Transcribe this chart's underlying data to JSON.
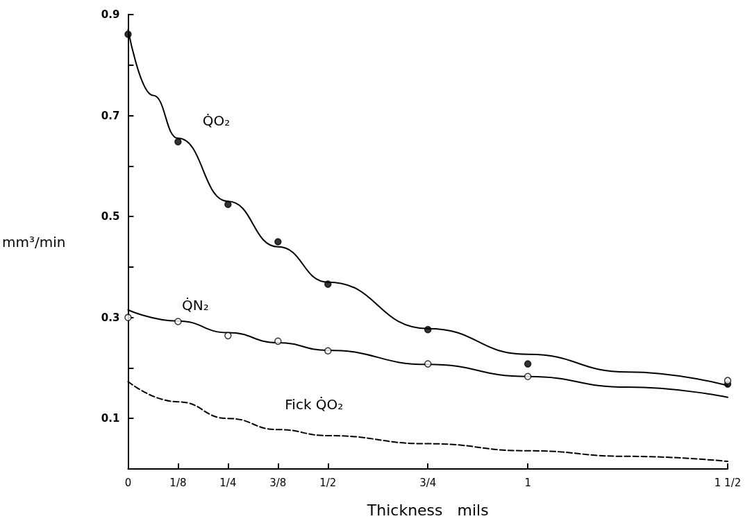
{
  "chart_data": {
    "type": "line",
    "xlabel": "Thickness   mils",
    "ylabel": "mm³/min",
    "xlim": [
      0,
      1.5
    ],
    "xticks": [
      0,
      {
        "value": 0.125,
        "label": "1/8"
      },
      {
        "value": 0.25,
        "label": "1/4"
      },
      {
        "value": 0.375,
        "label": "3/8"
      },
      {
        "value": 0.5,
        "label": "1/2"
      },
      {
        "value": 0.75,
        "label": "3/4"
      },
      1,
      {
        "value": 1.5,
        "label": "1 1/2"
      }
    ],
    "ylim": [
      0,
      0.9
    ],
    "yticks": [
      {
        "value": 0.1,
        "label": "0.1"
      },
      {
        "value": 0.2,
        "label": null
      },
      {
        "value": 0.3,
        "label": "0.3"
      },
      {
        "value": 0.4,
        "label": null
      },
      {
        "value": 0.5,
        "label": "0.5"
      },
      {
        "value": 0.6,
        "label": null
      },
      {
        "value": 0.7,
        "label": "0.7"
      },
      {
        "value": 0.8,
        "label": null
      },
      {
        "value": 0.9,
        "label": "0.9"
      }
    ],
    "grid": false,
    "legend": false,
    "series": [
      {
        "name": "Q̇O₂",
        "color": "#000000",
        "line_style": "solid",
        "marker": "none",
        "x": [
          0,
          0.0625,
          0.125,
          0.25,
          0.375,
          0.5,
          0.75,
          1,
          1.25,
          1.5
        ],
        "values": [
          0.87,
          0.74,
          0.655,
          0.53,
          0.44,
          0.37,
          0.278,
          0.227,
          0.192,
          0.165
        ]
      },
      {
        "name": "Q̇N₂",
        "color": "#000000",
        "line_style": "solid",
        "marker": "none",
        "x": [
          0,
          0.125,
          0.25,
          0.375,
          0.5,
          0.75,
          1,
          1.25,
          1.5
        ],
        "values": [
          0.315,
          0.293,
          0.27,
          0.25,
          0.235,
          0.207,
          0.183,
          0.162,
          0.142
        ]
      },
      {
        "name": "Fick Q̇O₂",
        "color": "#000000",
        "line_style": "dashed",
        "marker": "none",
        "x": [
          0,
          0.125,
          0.25,
          0.375,
          0.5,
          0.75,
          1,
          1.25,
          1.5
        ],
        "values": [
          0.173,
          0.133,
          0.1,
          0.078,
          0.066,
          0.05,
          0.036,
          0.025,
          0.015
        ]
      },
      {
        "type": "scatter",
        "color": "#000000",
        "marker": "circle",
        "x": [
          0,
          0.125,
          0.25,
          0.375,
          0.5,
          0.75,
          1,
          1.5
        ],
        "values": [
          0.861,
          0.648,
          0.524,
          0.45,
          0.366,
          0.276,
          0.208,
          0.168
        ]
      },
      {
        "type": "scatter",
        "color": "#ffffff",
        "marker": "circle",
        "x": [
          0,
          0.125,
          0.25,
          0.375,
          0.5,
          0.75,
          1,
          1.5
        ],
        "values": [
          0.3,
          0.292,
          0.264,
          0.253,
          0.234,
          0.208,
          0.183,
          0.175
        ]
      }
    ]
  }
}
